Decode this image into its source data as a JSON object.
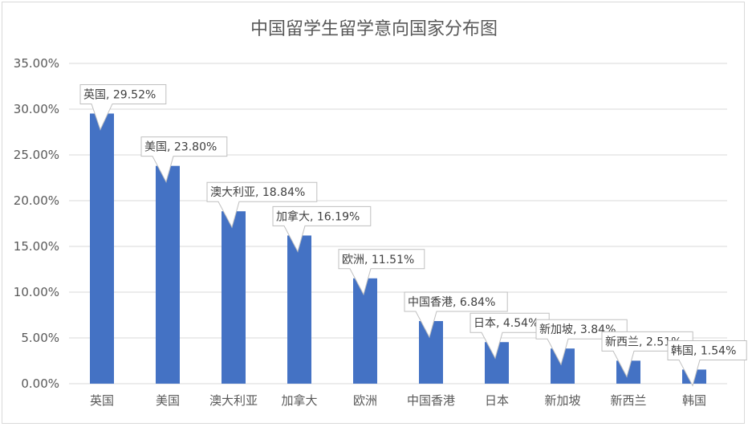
{
  "chart_data": {
    "type": "bar",
    "title": "中国留学生留学意向国家分布图",
    "xlabel": "",
    "ylabel": "",
    "ylim": [
      0,
      0.35
    ],
    "yticks": [
      "0.00%",
      "5.00%",
      "10.00%",
      "15.00%",
      "20.00%",
      "25.00%",
      "30.00%",
      "35.00%"
    ],
    "categories": [
      "英国",
      "美国",
      "澳大利亚",
      "加拿大",
      "欧洲",
      "中国香港",
      "日本",
      "新加坡",
      "新西兰",
      "韩国"
    ],
    "values": [
      0.2952,
      0.238,
      0.1884,
      0.1619,
      0.1151,
      0.0684,
      0.0454,
      0.0384,
      0.0251,
      0.0154
    ],
    "data_labels": [
      "英国, 29.52%",
      "美国, 23.80%",
      "澳大利亚, 18.84%",
      "加拿大, 16.19%",
      "欧洲, 11.51%",
      "中国香港, 6.84%",
      "日本, 4.54%",
      "新加坡, 3.84%",
      "新西兰, 2.51%",
      "韩国, 1.54%"
    ],
    "grid": true,
    "legend": "none",
    "bar_color": "#4472c4",
    "grid_color": "#d9d9d9"
  }
}
